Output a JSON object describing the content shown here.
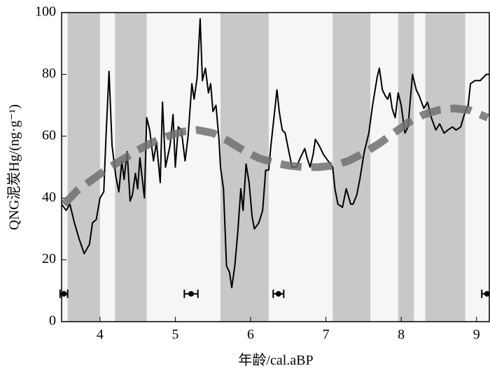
{
  "chart_data": {
    "type": "line",
    "x_label": "年龄/cal.aBP",
    "y_label": "QNG泥炭Hg/(ng·g⁻¹)",
    "xlim": [
      3.49,
      9.17
    ],
    "ylim": [
      0,
      100
    ],
    "xticks": [
      4,
      5,
      6,
      7,
      8,
      9
    ],
    "yticks": [
      0,
      20,
      40,
      60,
      80,
      100
    ],
    "shade_color": "#c8c8c8",
    "shaded_intervals": [
      [
        3.57,
        4.0
      ],
      [
        4.2,
        4.62
      ],
      [
        5.6,
        6.24
      ],
      [
        7.09,
        7.59
      ],
      [
        7.96,
        8.17
      ],
      [
        8.32,
        8.85
      ]
    ],
    "series": [
      {
        "color": "#000000",
        "style": "solid",
        "x": [
          3.49,
          3.55,
          3.6,
          3.66,
          3.72,
          3.79,
          3.86,
          3.9,
          3.95,
          4.0,
          4.05,
          4.08,
          4.12,
          4.16,
          4.21,
          4.25,
          4.29,
          4.32,
          4.36,
          4.4,
          4.43,
          4.47,
          4.5,
          4.53,
          4.59,
          4.62,
          4.66,
          4.71,
          4.75,
          4.8,
          4.83,
          4.87,
          4.93,
          4.97,
          5.0,
          5.04,
          5.08,
          5.13,
          5.17,
          5.22,
          5.25,
          5.29,
          5.33,
          5.36,
          5.4,
          5.44,
          5.47,
          5.5,
          5.54,
          5.58,
          5.6,
          5.64,
          5.68,
          5.72,
          5.75,
          5.79,
          5.83,
          5.87,
          5.9,
          5.94,
          5.98,
          6.02,
          6.05,
          6.11,
          6.16,
          6.2,
          6.24,
          6.27,
          6.31,
          6.35,
          6.38,
          6.42,
          6.46,
          6.5,
          6.55,
          6.61,
          6.66,
          6.72,
          6.75,
          6.79,
          6.83,
          6.86,
          6.91,
          6.97,
          7.03,
          7.09,
          7.12,
          7.16,
          7.22,
          7.27,
          7.33,
          7.36,
          7.41,
          7.45,
          7.51,
          7.57,
          7.62,
          7.68,
          7.71,
          7.75,
          7.79,
          7.82,
          7.85,
          7.88,
          7.92,
          7.96,
          8.0,
          8.05,
          8.09,
          8.15,
          8.2,
          8.24,
          8.3,
          8.35,
          8.4,
          8.46,
          8.51,
          8.57,
          8.62,
          8.68,
          8.73,
          8.79,
          8.85,
          8.89,
          8.92,
          8.98,
          9.05,
          9.13,
          9.17
        ],
        "values": [
          38,
          36,
          38,
          32,
          27,
          22,
          25,
          32,
          33,
          40,
          42,
          60,
          81,
          57,
          47,
          42,
          52,
          46,
          55,
          39,
          41,
          48,
          43,
          53,
          40,
          66,
          62,
          52,
          58,
          45,
          71,
          50,
          57,
          67,
          50,
          63,
          62,
          52,
          60,
          77,
          72,
          79,
          98,
          78,
          82,
          74,
          77,
          68,
          70,
          59,
          50,
          43,
          18,
          16,
          11,
          18,
          29,
          43,
          36,
          51,
          45,
          34,
          30,
          32,
          36,
          49,
          49,
          57,
          66,
          75,
          68,
          62,
          61,
          56,
          50,
          50,
          53,
          56,
          53,
          50,
          54,
          59,
          57,
          54,
          52,
          50,
          43,
          38,
          37,
          43,
          38,
          38,
          41,
          46,
          55,
          61,
          70,
          79,
          82,
          75,
          73,
          72,
          74,
          69,
          66,
          74,
          70,
          61,
          63,
          80,
          75,
          73,
          69,
          71,
          66,
          62,
          64,
          61,
          62,
          63,
          62,
          63,
          68,
          70,
          77,
          78,
          78,
          80,
          80
        ]
      },
      {
        "color": "#707070",
        "style": "dashed",
        "x": [
          3.52,
          3.7,
          3.9,
          4.1,
          4.3,
          4.5,
          4.7,
          4.9,
          5.1,
          5.3,
          5.5,
          5.7,
          5.9,
          6.1,
          6.3,
          6.5,
          6.7,
          6.9,
          7.1,
          7.3,
          7.5,
          7.7,
          7.9,
          8.1,
          8.3,
          8.5,
          8.7,
          8.9,
          9.15
        ],
        "values": [
          38,
          42.5,
          46,
          49.5,
          52.5,
          55.5,
          58,
          60,
          61.5,
          62,
          61,
          58.5,
          55.5,
          53,
          51.5,
          50.5,
          50,
          50,
          50.5,
          52,
          54.5,
          57.5,
          61,
          64.5,
          67,
          68.5,
          69,
          68.5,
          66
        ]
      }
    ],
    "dates": [
      {
        "x": 3.52,
        "y": 9,
        "xerr": 0.05
      },
      {
        "x": 5.21,
        "y": 9,
        "xerr": 0.09
      },
      {
        "x": 6.37,
        "y": 9,
        "xerr": 0.07
      },
      {
        "x": 9.14,
        "y": 9,
        "xerr": 0.07
      }
    ]
  }
}
